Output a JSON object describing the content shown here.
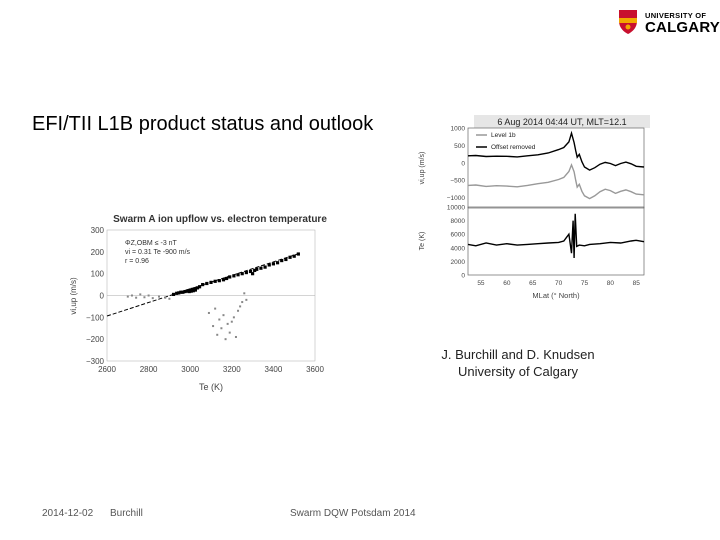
{
  "logo": {
    "line1": "UNIVERSITY OF",
    "line2": "CALGARY",
    "colors": {
      "red": "#c8102e",
      "gold": "#f2a900"
    }
  },
  "slide": {
    "title": "EFI/TII L1B product status and outlook",
    "credit_line1": "J. Burchill and D. Knudsen",
    "credit_line2": "University of Calgary"
  },
  "footer": {
    "date": "2014-12-02",
    "author": "Burchill",
    "event": "Swarm DQW Potsdam 2014"
  },
  "chart_data": [
    {
      "type": "scatter",
      "title": "Swarm A ion upflow vs. electron temperature",
      "xlabel": "Te (K)",
      "ylabel": "vi,up (m/s)",
      "xlim": [
        2600,
        3600
      ],
      "ylim": [
        -300,
        300
      ],
      "xticks": [
        2600,
        2800,
        3000,
        3200,
        3400,
        3600
      ],
      "yticks": [
        300,
        200,
        100,
        0,
        -100,
        -200,
        -300
      ],
      "annotations": [
        "ΦZ,OBM ≤ -3 nT",
        "vi = 0.31 Te -900 m/s",
        "r = 0.96"
      ],
      "fit": {
        "slope": 0.31,
        "intercept": -900
      },
      "series": [
        {
          "role": "selected",
          "x": [
            2920,
            2935,
            2945,
            2955,
            2965,
            2975,
            2985,
            2990,
            2995,
            3000,
            3005,
            3010,
            3015,
            3020,
            3025,
            3035,
            3045,
            3060,
            3080,
            3100,
            3120,
            3140,
            3160,
            3175,
            3190,
            3210,
            3230,
            3250,
            3270,
            3290,
            3300,
            3310,
            3320,
            3340,
            3360,
            3380,
            3400,
            3420,
            3440,
            3460,
            3480,
            3500,
            3520
          ],
          "y": [
            5,
            10,
            12,
            15,
            15,
            18,
            20,
            22,
            18,
            25,
            20,
            28,
            22,
            30,
            25,
            35,
            40,
            50,
            55,
            60,
            65,
            68,
            72,
            78,
            85,
            90,
            95,
            100,
            105,
            110,
            100,
            115,
            120,
            125,
            130,
            140,
            145,
            150,
            160,
            165,
            175,
            180,
            190
          ]
        },
        {
          "role": "other",
          "x": [
            2700,
            2720,
            2740,
            2760,
            2780,
            2800,
            2820,
            2850,
            2880,
            2900,
            3090,
            3110,
            3120,
            3130,
            3140,
            3150,
            3160,
            3170,
            3180,
            3190,
            3200,
            3210,
            3220,
            3230,
            3240,
            3250,
            3260,
            3270
          ],
          "y": [
            -5,
            0,
            -10,
            5,
            -8,
            0,
            -12,
            -5,
            -10,
            -15,
            -80,
            -140,
            -60,
            -180,
            -110,
            -150,
            -90,
            -200,
            -130,
            -170,
            -120,
            -100,
            -190,
            -70,
            -50,
            -30,
            10,
            -20
          ]
        }
      ]
    },
    {
      "type": "line",
      "title": "6 Aug 2014 04:44 UT, MLT=12.1",
      "ylabel": "vi,up (m/s)",
      "ylim": [
        -1300,
        1000
      ],
      "yticks": [
        1000,
        500,
        0,
        -500,
        -1000
      ],
      "legend": [
        "Level 1b",
        "Offset removed"
      ],
      "legend_position": "top-left",
      "xlim": [
        52.5,
        86.5
      ],
      "x": [
        52.5,
        54,
        56,
        58,
        60,
        62,
        64,
        66,
        68,
        70,
        71,
        72,
        72.5,
        73,
        73.3,
        73.6,
        74,
        74.5,
        75,
        76,
        77,
        78,
        79,
        80,
        81,
        82,
        83,
        84,
        85,
        86.5
      ],
      "series": [
        {
          "name": "Level 1b",
          "color": "#999999",
          "values": [
            -650,
            -640,
            -680,
            -660,
            -670,
            -690,
            -650,
            -600,
            -560,
            -480,
            -420,
            -250,
            -60,
            -260,
            -500,
            -700,
            -620,
            -820,
            -950,
            -1030,
            -950,
            -830,
            -760,
            -800,
            -880,
            -820,
            -780,
            -830,
            -900,
            -920
          ]
        },
        {
          "name": "Offset removed",
          "color": "#000000",
          "values": [
            200,
            210,
            180,
            190,
            185,
            170,
            200,
            230,
            280,
            380,
            440,
            600,
            850,
            580,
            350,
            160,
            240,
            30,
            -120,
            -210,
            -140,
            -40,
            10,
            -20,
            -80,
            -20,
            20,
            -30,
            -100,
            -120
          ]
        }
      ]
    },
    {
      "type": "line",
      "ylabel": "Te (K)",
      "xlabel": "MLat (° North)",
      "ylim": [
        0,
        10000
      ],
      "yticks": [
        10000,
        8000,
        6000,
        4000,
        2000,
        0
      ],
      "xlim": [
        52.5,
        86.5
      ],
      "xticks": [
        55,
        60,
        65,
        70,
        75,
        80,
        85
      ],
      "x": [
        52.5,
        54,
        56,
        58,
        60,
        62,
        64,
        66,
        68,
        70,
        71,
        72,
        72.5,
        72.8,
        73,
        73.2,
        73.5,
        74,
        75,
        76,
        78,
        80,
        82,
        84,
        85,
        86.5
      ],
      "series": [
        {
          "name": "Te",
          "color": "#000000",
          "values": [
            4500,
            4300,
            4700,
            4400,
            4600,
            4400,
            4500,
            4600,
            4700,
            4800,
            5000,
            6000,
            3200,
            8000,
            2500,
            9000,
            4200,
            4400,
            4300,
            4500,
            4600,
            4800,
            4700,
            5000,
            5100,
            4900
          ]
        }
      ]
    }
  ]
}
